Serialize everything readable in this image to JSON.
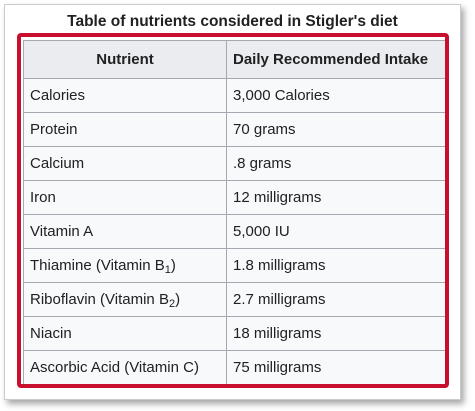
{
  "caption": "Table of nutrients considered in Stigler's diet",
  "headers": [
    "Nutrient",
    "Daily Recommended Intake"
  ],
  "rows": [
    {
      "name": "Calories",
      "sub": "",
      "suffix": "",
      "intake": "3,000 Calories"
    },
    {
      "name": "Protein",
      "sub": "",
      "suffix": "",
      "intake": "70 grams"
    },
    {
      "name": "Calcium",
      "sub": "",
      "suffix": "",
      "intake": ".8 grams"
    },
    {
      "name": "Iron",
      "sub": "",
      "suffix": "",
      "intake": "12 milligrams"
    },
    {
      "name": "Vitamin A",
      "sub": "",
      "suffix": "",
      "intake": "5,000 IU"
    },
    {
      "name": "Thiamine (Vitamin B",
      "sub": "1",
      "suffix": ")",
      "intake": "1.8 milligrams"
    },
    {
      "name": "Riboflavin (Vitamin B",
      "sub": "2",
      "suffix": ")",
      "intake": "2.7 milligrams"
    },
    {
      "name": "Niacin",
      "sub": "",
      "suffix": "",
      "intake": "18 milligrams"
    },
    {
      "name": "Ascorbic Acid (Vitamin C)",
      "sub": "",
      "suffix": "",
      "intake": "75 milligrams"
    }
  ],
  "colors": {
    "highlight": "#c8102e",
    "header_bg": "#eaecf0",
    "cell_bg": "#f8f9fa",
    "border": "#a2a9b1"
  }
}
